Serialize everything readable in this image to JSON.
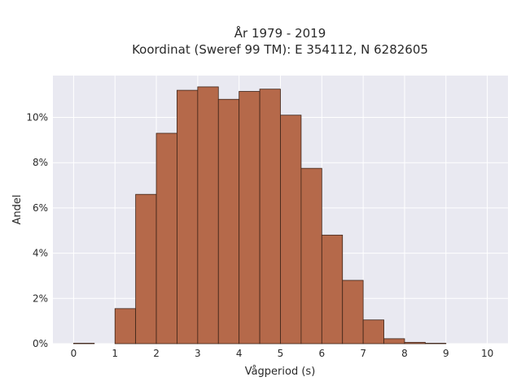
{
  "chart_data": {
    "type": "bar",
    "title_lines": [
      "År 1979 - 2019",
      "Koordinat (Sweref 99 TM): E 354112, N 6282605"
    ],
    "xlabel": "Vågperiod (s)",
    "ylabel": "Andel",
    "xlim": [
      -0.5,
      10.5
    ],
    "ylim": [
      0,
      11.85
    ],
    "x_ticks": [
      0,
      1,
      2,
      3,
      4,
      5,
      6,
      7,
      8,
      9,
      10
    ],
    "y_ticks": [
      0,
      2,
      4,
      6,
      8,
      10
    ],
    "y_tick_labels": [
      "0%",
      "2%",
      "4%",
      "6%",
      "8%",
      "10%"
    ],
    "bin_width": 0.5,
    "bins": [
      {
        "start": 0.0,
        "value": 0.02
      },
      {
        "start": 0.5,
        "value": 0.0
      },
      {
        "start": 1.0,
        "value": 1.55
      },
      {
        "start": 1.5,
        "value": 6.6
      },
      {
        "start": 2.0,
        "value": 9.3
      },
      {
        "start": 2.5,
        "value": 11.2
      },
      {
        "start": 3.0,
        "value": 11.35
      },
      {
        "start": 3.5,
        "value": 10.8
      },
      {
        "start": 4.0,
        "value": 11.15
      },
      {
        "start": 4.5,
        "value": 11.25
      },
      {
        "start": 5.0,
        "value": 10.1
      },
      {
        "start": 5.5,
        "value": 7.75
      },
      {
        "start": 6.0,
        "value": 4.8
      },
      {
        "start": 6.5,
        "value": 2.8
      },
      {
        "start": 7.0,
        "value": 1.05
      },
      {
        "start": 7.5,
        "value": 0.22
      },
      {
        "start": 8.0,
        "value": 0.06
      },
      {
        "start": 8.5,
        "value": 0.02
      },
      {
        "start": 9.0,
        "value": 0.0
      },
      {
        "start": 9.5,
        "value": 0.0
      }
    ],
    "grid": true,
    "colors": {
      "bar_fill": "#b5694a",
      "bar_edge": "#3d2418",
      "plot_bg": "#e9e9f1",
      "grid": "#ffffff"
    }
  }
}
